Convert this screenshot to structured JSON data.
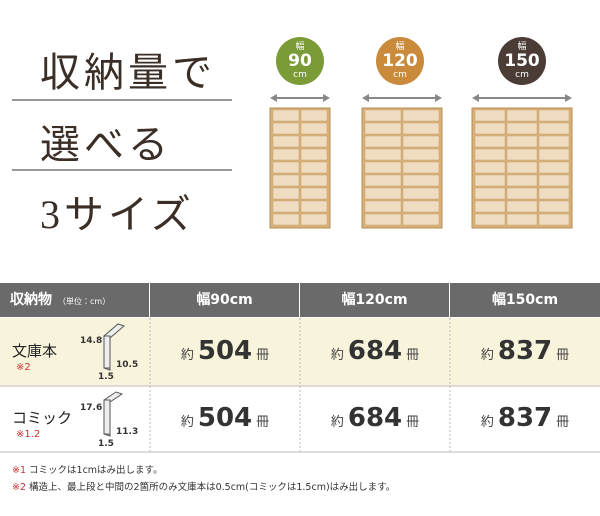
{
  "heading": {
    "lines": [
      "収納量で",
      "選べる",
      "3サイズ"
    ]
  },
  "sizes": [
    {
      "label": "幅",
      "width": "90",
      "unit": "cm"
    },
    {
      "label": "幅",
      "width": "120",
      "unit": "cm"
    },
    {
      "label": "幅",
      "width": "150",
      "unit": "cm"
    }
  ],
  "table": {
    "header": {
      "item": "収納物",
      "unit": "（単位：cm）",
      "columns": [
        "幅90cm",
        "幅120cm",
        "幅150cm"
      ]
    },
    "rows": [
      {
        "name": "文庫本",
        "note": "※2",
        "height": "14.8",
        "depth": "10.5",
        "thickness": "1.5",
        "cells": [
          {
            "prefix": "約",
            "count": "504",
            "suffix": "冊"
          },
          {
            "prefix": "約",
            "count": "684",
            "suffix": "冊"
          },
          {
            "prefix": "約",
            "count": "837",
            "suffix": "冊"
          }
        ]
      },
      {
        "name": "コミック",
        "note": "※1.2",
        "height": "17.6",
        "depth": "11.3",
        "thickness": "1.5",
        "cells": [
          {
            "prefix": "約",
            "count": "504",
            "suffix": "冊"
          },
          {
            "prefix": "約",
            "count": "684",
            "suffix": "冊"
          },
          {
            "prefix": "約",
            "count": "837",
            "suffix": "冊"
          }
        ]
      }
    ]
  },
  "footnotes": [
    "※1 コミックは1cmはみ出します。",
    "※2 構造上、最上段と中間の2箇所のみ文庫本は0.5cm(コミックは1.5cm)はみ出します。"
  ]
}
